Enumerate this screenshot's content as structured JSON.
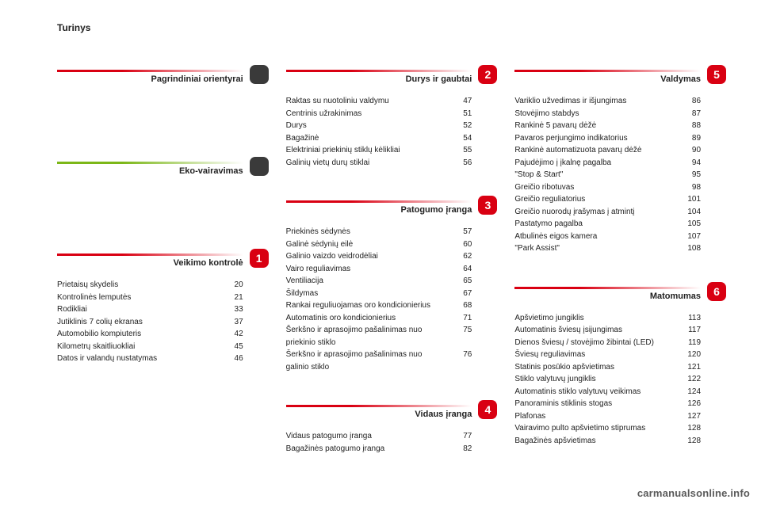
{
  "page_title": "Turinys",
  "watermark": "carmanualsonline.info",
  "style": {
    "page_bg": "#ffffff",
    "text_color": "#222222",
    "title_fontsize": 12,
    "section_title_fontsize": 11,
    "item_fontsize": 10,
    "chip_text_color": "#ffffff",
    "chip_size": 24,
    "chip_radius": 7,
    "rule_height": 3,
    "gradients": {
      "red": {
        "from": "#d90012",
        "to": "#ffffff"
      },
      "green": {
        "from": "#7cb718",
        "to": "#ffffff"
      }
    }
  },
  "columns": [
    {
      "sections": [
        {
          "title": "Pagrindiniai orientyrai",
          "gradient": "red",
          "chip": {
            "text": "",
            "bg": "#3a3a3a",
            "blank": true
          },
          "items": []
        },
        {
          "title": "Eko-vairavimas",
          "gradient": "green",
          "chip": {
            "text": "",
            "bg": "#3a3a3a",
            "blank": true
          },
          "items": []
        },
        {
          "title": "Veikimo kontrolė",
          "gradient": "red",
          "chip": {
            "text": "1",
            "bg": "#d90012"
          },
          "items": [
            {
              "label": "Prietaisų skydelis",
              "page": "20"
            },
            {
              "label": "Kontrolinės lemputės",
              "page": "21"
            },
            {
              "label": "Rodikliai",
              "page": "33"
            },
            {
              "label": "Jutiklinis 7 colių ekranas",
              "page": "37"
            },
            {
              "label": "Automobilio kompiuteris",
              "page": "42"
            },
            {
              "label": "Kilometrų skaitliuokliai",
              "page": "45"
            },
            {
              "label": "Datos ir valandų nustatymas",
              "page": "46"
            }
          ]
        }
      ]
    },
    {
      "sections": [
        {
          "title": "Durys ir gaubtai",
          "gradient": "red",
          "chip": {
            "text": "2",
            "bg": "#d90012"
          },
          "items": [
            {
              "label": "Raktas su nuotoliniu valdymu",
              "page": "47"
            },
            {
              "label": "Centrinis užrakinimas",
              "page": "51"
            },
            {
              "label": "Durys",
              "page": "52"
            },
            {
              "label": "Bagažinė",
              "page": "54"
            },
            {
              "label": "Elektriniai priekinių stiklų kėlikliai",
              "page": "55"
            },
            {
              "label": "Galinių vietų durų stiklai",
              "page": "56"
            }
          ]
        },
        {
          "title": "Patogumo įranga",
          "gradient": "red",
          "chip": {
            "text": "3",
            "bg": "#d90012"
          },
          "items": [
            {
              "label": "Priekinės sėdynės",
              "page": "57"
            },
            {
              "label": "Galinė sėdynių eilė",
              "page": "60"
            },
            {
              "label": "Galinio vaizdo veidrodėliai",
              "page": "62"
            },
            {
              "label": "Vairo reguliavimas",
              "page": "64"
            },
            {
              "label": "Ventiliacija",
              "page": "65"
            },
            {
              "label": "Šildymas",
              "page": "67"
            },
            {
              "label": "Rankai reguliuojamas oro kondicionierius",
              "page": "68"
            },
            {
              "label": "Automatinis oro kondicionierius",
              "page": "71"
            },
            {
              "label": "Šerkšno ir aprasojimo pašalinimas nuo priekinio stiklo",
              "page": "75"
            },
            {
              "label": "Šerkšno ir aprasojimo pašalinimas nuo galinio stiklo",
              "page": "76"
            }
          ]
        },
        {
          "title": "Vidaus įranga",
          "gradient": "red",
          "chip": {
            "text": "4",
            "bg": "#d90012"
          },
          "items": [
            {
              "label": "Vidaus patogumo įranga",
              "page": "77"
            },
            {
              "label": "Bagažinės patogumo įranga",
              "page": "82"
            }
          ]
        }
      ]
    },
    {
      "sections": [
        {
          "title": "Valdymas",
          "gradient": "red",
          "chip": {
            "text": "5",
            "bg": "#d90012"
          },
          "items": [
            {
              "label": "Variklio užvedimas ir išjungimas",
              "page": "86"
            },
            {
              "label": "Stovėjimo stabdys",
              "page": "87"
            },
            {
              "label": "Rankinė 5 pavarų dėžė",
              "page": "88"
            },
            {
              "label": "Pavaros perjungimo indikatorius",
              "page": "89"
            },
            {
              "label": "Rankinė automatizuota pavarų dėžė",
              "page": "90"
            },
            {
              "label": "Pajudėjimo į įkalnę pagalba",
              "page": "94"
            },
            {
              "label": "\"Stop & Start\"",
              "page": "95"
            },
            {
              "label": "Greičio ribotuvas",
              "page": "98"
            },
            {
              "label": "Greičio reguliatorius",
              "page": "101"
            },
            {
              "label": "Greičio nuorodų įrašymas į atmintį",
              "page": "104"
            },
            {
              "label": "Pastatymo pagalba",
              "page": "105"
            },
            {
              "label": "Atbulinės eigos kamera",
              "page": "107"
            },
            {
              "label": "\"Park Assist\"",
              "page": "108"
            }
          ]
        },
        {
          "title": "Matomumas",
          "gradient": "red",
          "chip": {
            "text": "6",
            "bg": "#d90012"
          },
          "items": [
            {
              "label": "Apšvietimo jungiklis",
              "page": "113"
            },
            {
              "label": "Automatinis šviesų įsijungimas",
              "page": "117"
            },
            {
              "label": "Dienos šviesų / stovėjimo žibintai (LED)",
              "page": "119"
            },
            {
              "label": "Šviesų reguliavimas",
              "page": "120"
            },
            {
              "label": "Statinis posūkio apšvietimas",
              "page": "121"
            },
            {
              "label": "Stiklo valytuvų jungiklis",
              "page": "122"
            },
            {
              "label": "Automatinis stiklo valytuvų veikimas",
              "page": "124"
            },
            {
              "label": "Panoraminis stiklinis stogas",
              "page": "126"
            },
            {
              "label": "Plafonas",
              "page": "127"
            },
            {
              "label": "Vairavimo pulto apšvietimo stiprumas",
              "page": "128"
            },
            {
              "label": "Bagažinės apšvietimas",
              "page": "128"
            }
          ]
        }
      ]
    }
  ]
}
